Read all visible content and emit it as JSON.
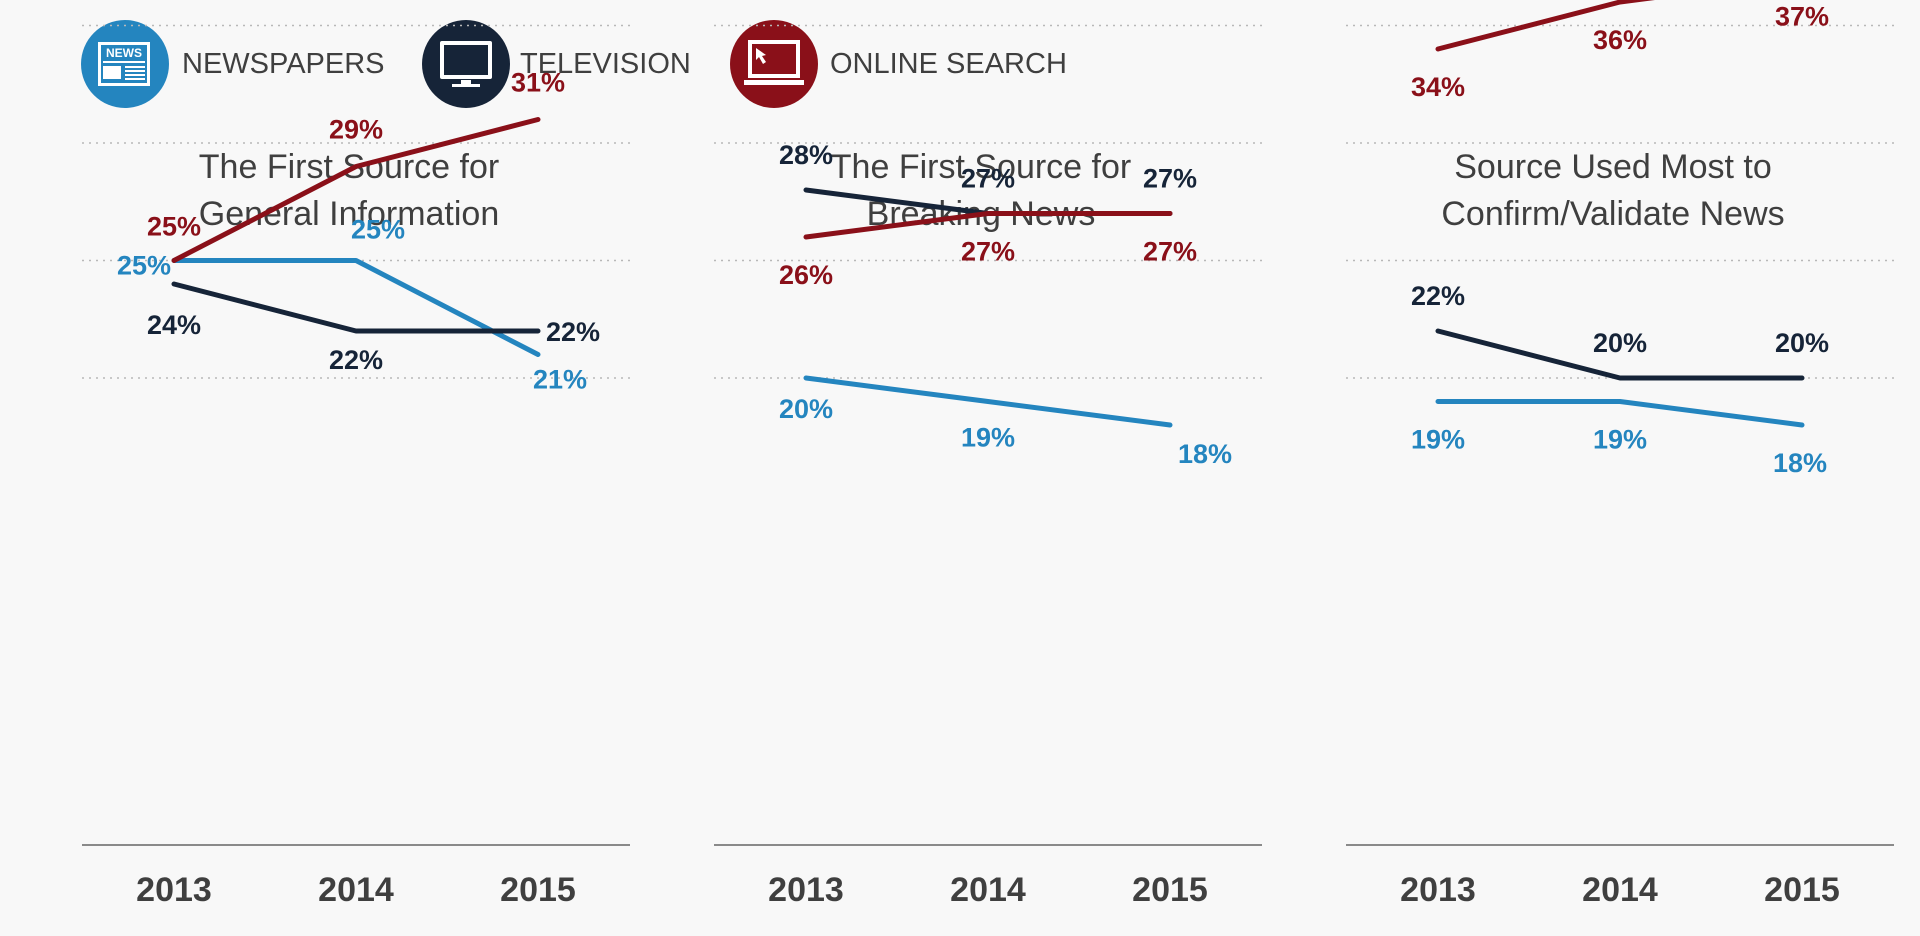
{
  "legend": [
    {
      "key": "newspapers",
      "label": "NEWSPAPERS",
      "icon": "newspaper-icon",
      "icon_text": "NEWS",
      "color": "#2485bf"
    },
    {
      "key": "television",
      "label": "TELEVISION",
      "icon": "television-icon",
      "color": "#162438"
    },
    {
      "key": "online",
      "label": "ONLINE SEARCH",
      "icon": "computer-cursor-icon",
      "color": "#8a1019"
    }
  ],
  "colors": {
    "newspapers": "#2485bf",
    "television": "#162438",
    "online": "#8a1019",
    "text": "#3f3f3f",
    "grid": "#b8b8b8",
    "axis": "#8a8a8a",
    "background": "#f8f8f8"
  },
  "chart_data": [
    {
      "type": "line",
      "title_lines": [
        "The First Source for",
        "General Information"
      ],
      "x": [
        "2013",
        "2014",
        "2015"
      ],
      "ylim": [
        0,
        50
      ],
      "grid": "dotted horizontal",
      "series": [
        {
          "name": "NEWSPAPERS",
          "key": "newspapers",
          "values": [
            25,
            25,
            21
          ],
          "labels": [
            "25%",
            "25%",
            "21%"
          ]
        },
        {
          "name": "TELEVISION",
          "key": "television",
          "values": [
            24,
            22,
            22
          ],
          "labels": [
            "24%",
            "22%",
            "22%"
          ]
        },
        {
          "name": "ONLINE SEARCH",
          "key": "online",
          "values": [
            25,
            29,
            31
          ],
          "labels": [
            "25%",
            "29%",
            "31%"
          ]
        }
      ]
    },
    {
      "type": "line",
      "title_lines": [
        "The First Source for",
        "Breaking News"
      ],
      "x": [
        "2013",
        "2014",
        "2015"
      ],
      "ylim": [
        0,
        50
      ],
      "grid": "dotted horizontal",
      "series": [
        {
          "name": "NEWSPAPERS",
          "key": "newspapers",
          "values": [
            20,
            19,
            18
          ],
          "labels": [
            "20%",
            "19%",
            "18%"
          ]
        },
        {
          "name": "TELEVISION",
          "key": "television",
          "values": [
            28,
            27,
            27
          ],
          "labels": [
            "28%",
            "27%",
            "27%"
          ]
        },
        {
          "name": "ONLINE SEARCH",
          "key": "online",
          "values": [
            26,
            27,
            27
          ],
          "labels": [
            "26%",
            "27%",
            "27%"
          ]
        }
      ]
    },
    {
      "type": "line",
      "title_lines": [
        "Source Used Most to",
        "Confirm/Validate News"
      ],
      "x": [
        "2013",
        "2014",
        "2015"
      ],
      "ylim": [
        0,
        50
      ],
      "grid": "dotted horizontal",
      "series": [
        {
          "name": "NEWSPAPERS",
          "key": "newspapers",
          "values": [
            19,
            19,
            18
          ],
          "labels": [
            "19%",
            "19%",
            "18%"
          ]
        },
        {
          "name": "TELEVISION",
          "key": "television",
          "values": [
            22,
            20,
            20
          ],
          "labels": [
            "22%",
            "20%",
            "20%"
          ]
        },
        {
          "name": "ONLINE SEARCH",
          "key": "online",
          "values": [
            34,
            36,
            37
          ],
          "labels": [
            "34%",
            "36%",
            "37%"
          ]
        }
      ]
    }
  ]
}
